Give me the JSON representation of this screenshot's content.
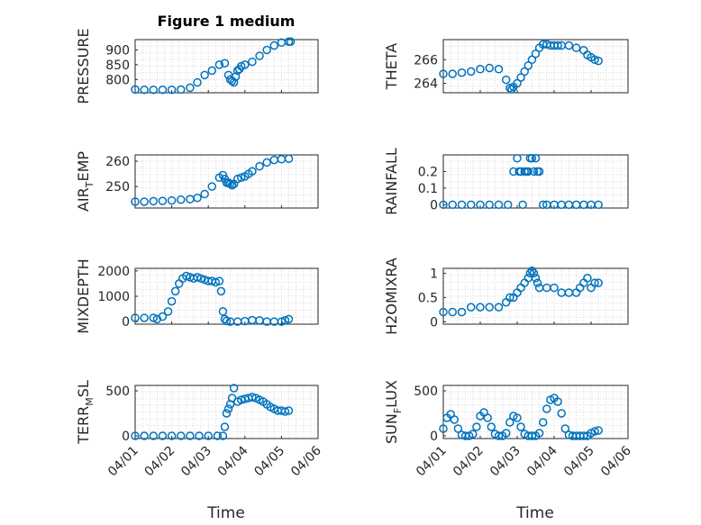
{
  "figure": {
    "title": "Figure 1 medium",
    "xlabel": "Time",
    "marker_color": "#0072BD"
  },
  "chart_data": [
    {
      "type": "scatter",
      "ylabel": "PRESSURE",
      "ylabel_sub": "",
      "yticks": [
        800,
        850,
        900
      ],
      "ylim": [
        755,
        935
      ],
      "xlim": [
        0,
        5
      ],
      "x": [
        0.0,
        0.25,
        0.5,
        0.75,
        1.0,
        1.25,
        1.5,
        1.7,
        1.9,
        2.1,
        2.3,
        2.45,
        2.55,
        2.6,
        2.65,
        2.7,
        2.75,
        2.8,
        2.85,
        2.9,
        3.0,
        3.2,
        3.4,
        3.6,
        3.8,
        4.0,
        4.2,
        4.25
      ],
      "y": [
        766,
        765,
        765,
        765,
        765,
        766,
        772,
        790,
        815,
        830,
        850,
        855,
        815,
        800,
        795,
        790,
        810,
        830,
        835,
        845,
        850,
        860,
        880,
        900,
        915,
        925,
        928,
        928
      ]
    },
    {
      "type": "scatter",
      "ylabel": "THETA",
      "ylabel_sub": "",
      "yticks": [
        264,
        266
      ],
      "ylim": [
        263.2,
        267.7
      ],
      "xlim": [
        0,
        5
      ],
      "x": [
        0.0,
        0.25,
        0.5,
        0.75,
        1.0,
        1.25,
        1.5,
        1.7,
        1.8,
        1.85,
        1.9,
        2.0,
        2.1,
        2.2,
        2.3,
        2.4,
        2.5,
        2.6,
        2.7,
        2.8,
        2.9,
        3.0,
        3.1,
        3.2,
        3.4,
        3.6,
        3.8,
        3.9,
        4.0,
        4.1,
        4.2
      ],
      "y": [
        264.8,
        264.8,
        264.9,
        265.0,
        265.2,
        265.3,
        265.2,
        264.3,
        263.6,
        263.5,
        263.7,
        264.0,
        264.5,
        265.0,
        265.5,
        266.0,
        266.5,
        267.0,
        267.3,
        267.3,
        267.2,
        267.2,
        267.2,
        267.2,
        267.2,
        267.0,
        266.8,
        266.4,
        266.2,
        266.0,
        265.9
      ]
    },
    {
      "type": "scatter",
      "ylabel": "AIR",
      "ylabel_sub": "T",
      "ylabel_rest": "EMP",
      "yticks": [
        250,
        260
      ],
      "ylim": [
        241.5,
        262.5
      ],
      "xlim": [
        0,
        5
      ],
      "x": [
        0.0,
        0.25,
        0.5,
        0.75,
        1.0,
        1.25,
        1.5,
        1.7,
        1.9,
        2.1,
        2.3,
        2.4,
        2.45,
        2.5,
        2.55,
        2.6,
        2.65,
        2.7,
        2.8,
        2.9,
        3.0,
        3.1,
        3.2,
        3.4,
        3.6,
        3.8,
        4.0,
        4.2
      ],
      "y": [
        244,
        244,
        244.2,
        244.3,
        244.5,
        244.8,
        245,
        245.5,
        247,
        250,
        253.5,
        254.5,
        253,
        251.5,
        251.5,
        251,
        250.5,
        251,
        253,
        253.5,
        254,
        255,
        256,
        258,
        259.5,
        260.5,
        260.8,
        261
      ]
    },
    {
      "type": "scatter",
      "ylabel": "RAINFALL",
      "ylabel_sub": "",
      "yticks": [
        0,
        0.1,
        0.2
      ],
      "ylim": [
        -0.02,
        0.3
      ],
      "xlim": [
        0,
        5
      ],
      "x": [
        0.0,
        0.25,
        0.5,
        0.75,
        1.0,
        1.25,
        1.5,
        1.75,
        1.9,
        2.0,
        2.05,
        2.1,
        2.15,
        2.2,
        2.25,
        2.3,
        2.35,
        2.4,
        2.45,
        2.5,
        2.55,
        2.6,
        2.7,
        2.8,
        3.0,
        3.2,
        3.4,
        3.6,
        3.8,
        4.0,
        4.2
      ],
      "y": [
        0,
        0,
        0,
        0,
        0,
        0,
        0,
        0,
        0.2,
        0.28,
        0.2,
        0.2,
        0,
        0.2,
        0.2,
        0.2,
        0.28,
        0.28,
        0.2,
        0.28,
        0.2,
        0.2,
        0,
        0,
        0,
        0,
        0,
        0,
        0,
        0,
        0
      ]
    },
    {
      "type": "scatter",
      "ylabel": "MIXDEPTH",
      "ylabel_sub": "",
      "yticks": [
        0,
        1000,
        2000
      ],
      "ylim": [
        -100,
        2100
      ],
      "xlim": [
        0,
        5
      ],
      "x": [
        0.0,
        0.25,
        0.5,
        0.6,
        0.75,
        0.9,
        1.0,
        1.1,
        1.2,
        1.3,
        1.4,
        1.5,
        1.6,
        1.7,
        1.8,
        1.9,
        2.0,
        2.1,
        2.2,
        2.3,
        2.35,
        2.4,
        2.45,
        2.5,
        2.6,
        2.8,
        3.0,
        3.2,
        3.4,
        3.6,
        3.8,
        4.0,
        4.1,
        4.2
      ],
      "y": [
        150,
        150,
        150,
        100,
        200,
        400,
        800,
        1200,
        1500,
        1700,
        1800,
        1750,
        1700,
        1750,
        1700,
        1650,
        1600,
        1600,
        1550,
        1600,
        1200,
        400,
        100,
        30,
        0,
        0,
        20,
        60,
        50,
        0,
        0,
        0,
        50,
        100
      ]
    },
    {
      "type": "scatter",
      "ylabel": "H2OMIXRA",
      "ylabel_sub": "",
      "yticks": [
        0,
        0.5,
        1
      ],
      "ylim": [
        -0.05,
        1.1
      ],
      "xlim": [
        0,
        5
      ],
      "x": [
        0.0,
        0.25,
        0.5,
        0.75,
        1.0,
        1.25,
        1.5,
        1.7,
        1.8,
        1.9,
        2.0,
        2.1,
        2.2,
        2.3,
        2.35,
        2.4,
        2.45,
        2.5,
        2.55,
        2.6,
        2.8,
        3.0,
        3.2,
        3.4,
        3.6,
        3.7,
        3.8,
        3.9,
        4.0,
        4.1,
        4.2
      ],
      "y": [
        0.2,
        0.2,
        0.2,
        0.3,
        0.3,
        0.3,
        0.3,
        0.4,
        0.5,
        0.5,
        0.6,
        0.7,
        0.8,
        0.9,
        1.0,
        1.05,
        1.0,
        0.9,
        0.8,
        0.7,
        0.7,
        0.7,
        0.6,
        0.6,
        0.6,
        0.7,
        0.8,
        0.9,
        0.7,
        0.8,
        0.8
      ]
    },
    {
      "type": "scatter",
      "ylabel": "TERR",
      "ylabel_sub": "M",
      "ylabel_rest": "SL",
      "yticks": [
        0,
        500
      ],
      "ylim": [
        -30,
        560
      ],
      "xlim": [
        0,
        5
      ],
      "x": [
        0.0,
        0.25,
        0.5,
        0.75,
        1.0,
        1.25,
        1.5,
        1.75,
        2.0,
        2.25,
        2.4,
        2.45,
        2.5,
        2.55,
        2.6,
        2.65,
        2.7,
        2.8,
        2.9,
        3.0,
        3.1,
        3.2,
        3.3,
        3.4,
        3.5,
        3.6,
        3.7,
        3.8,
        3.9,
        4.0,
        4.1,
        4.2
      ],
      "y": [
        0,
        0,
        0,
        0,
        0,
        0,
        0,
        0,
        0,
        0,
        0,
        100,
        250,
        300,
        350,
        420,
        530,
        380,
        400,
        410,
        420,
        430,
        420,
        400,
        380,
        350,
        320,
        300,
        280,
        280,
        270,
        280
      ]
    },
    {
      "type": "scatter",
      "ylabel": "SUN",
      "ylabel_sub": "F",
      "ylabel_rest": "LUX",
      "yticks": [
        0,
        500
      ],
      "ylim": [
        -30,
        560
      ],
      "xlim": [
        0,
        5
      ],
      "x": [
        0.0,
        0.1,
        0.2,
        0.3,
        0.4,
        0.5,
        0.6,
        0.7,
        0.8,
        0.9,
        1.0,
        1.1,
        1.2,
        1.3,
        1.4,
        1.5,
        1.6,
        1.7,
        1.8,
        1.9,
        2.0,
        2.1,
        2.2,
        2.3,
        2.4,
        2.5,
        2.6,
        2.7,
        2.8,
        2.9,
        3.0,
        3.1,
        3.2,
        3.3,
        3.4,
        3.5,
        3.6,
        3.7,
        3.8,
        3.9,
        4.0,
        4.1,
        4.2
      ],
      "y": [
        80,
        200,
        240,
        180,
        80,
        10,
        0,
        0,
        20,
        100,
        220,
        260,
        200,
        100,
        20,
        0,
        0,
        30,
        150,
        220,
        200,
        100,
        20,
        0,
        0,
        0,
        30,
        150,
        300,
        400,
        420,
        380,
        250,
        80,
        10,
        0,
        0,
        0,
        0,
        0,
        30,
        50,
        60
      ]
    }
  ],
  "x_tick_labels": [
    "04/01",
    "04/02",
    "04/03",
    "04/04",
    "04/05",
    "04/06"
  ]
}
